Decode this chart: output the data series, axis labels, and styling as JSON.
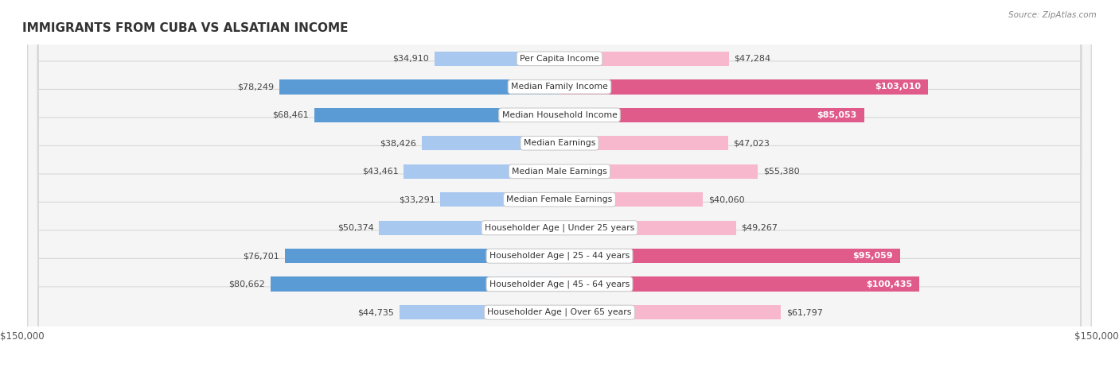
{
  "title": "IMMIGRANTS FROM CUBA VS ALSATIAN INCOME",
  "source": "Source: ZipAtlas.com",
  "categories": [
    "Per Capita Income",
    "Median Family Income",
    "Median Household Income",
    "Median Earnings",
    "Median Male Earnings",
    "Median Female Earnings",
    "Householder Age | Under 25 years",
    "Householder Age | 25 - 44 years",
    "Householder Age | 45 - 64 years",
    "Householder Age | Over 65 years"
  ],
  "cuba_values": [
    34910,
    78249,
    68461,
    38426,
    43461,
    33291,
    50374,
    76701,
    80662,
    44735
  ],
  "alsatian_values": [
    47284,
    103010,
    85053,
    47023,
    55380,
    40060,
    49267,
    95059,
    100435,
    61797
  ],
  "cuba_color_light": "#a8c8f0",
  "cuba_color_dark": "#5b9bd5",
  "alsatian_color_light": "#f7b8ce",
  "alsatian_color_dark": "#e05a8a",
  "max_value": 150000,
  "background_color": "#ffffff",
  "row_bg_even": "#f0f0f0",
  "row_bg_odd": "#f8f8f8",
  "cuba_threshold": 60000,
  "alsatian_threshold": 80000
}
